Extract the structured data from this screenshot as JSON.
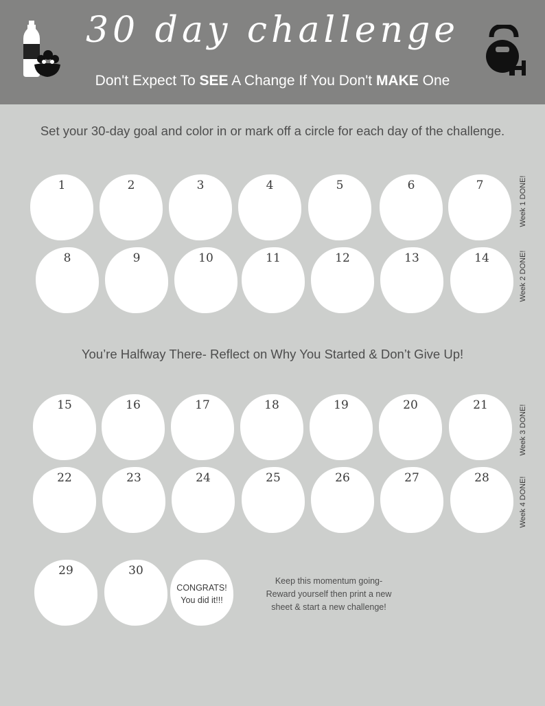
{
  "header": {
    "title": "30 day challenge",
    "subtitle_parts": [
      "Don't Expect To ",
      "SEE",
      " A Change If You Don't ",
      "MAKE",
      " One"
    ],
    "left_icon": "water-bottle-and-vegetable-bowl-icon",
    "right_icon": "kettlebell-and-dumbbell-icon"
  },
  "instructions": "Set your 30-day goal and color in or mark off a circle for each day of the challenge.",
  "halfway": "You’re Halfway There- Reflect on Why You Started & Don’t Give Up!",
  "days": [
    "1",
    "2",
    "3",
    "4",
    "5",
    "6",
    "7",
    "8",
    "9",
    "10",
    "11",
    "12",
    "13",
    "14",
    "15",
    "16",
    "17",
    "18",
    "19",
    "20",
    "21",
    "22",
    "23",
    "24",
    "25",
    "26",
    "27",
    "28",
    "29",
    "30"
  ],
  "weeks": [
    "Week 1 DONE!",
    "Week 2 DONE!",
    "Week 3 DONE!",
    "Week 4 DONE!"
  ],
  "congrats": [
    "CONGRATS!",
    "You did it!!!"
  ],
  "momentum": [
    "Keep this momentum going-",
    "Reward yourself then print a new",
    "sheet & start a new challenge!"
  ],
  "colors": {
    "header_bg": "#838382",
    "page_bg": "#cdcfcd",
    "circle": "#ffffff",
    "text": "#4d4d4d"
  }
}
